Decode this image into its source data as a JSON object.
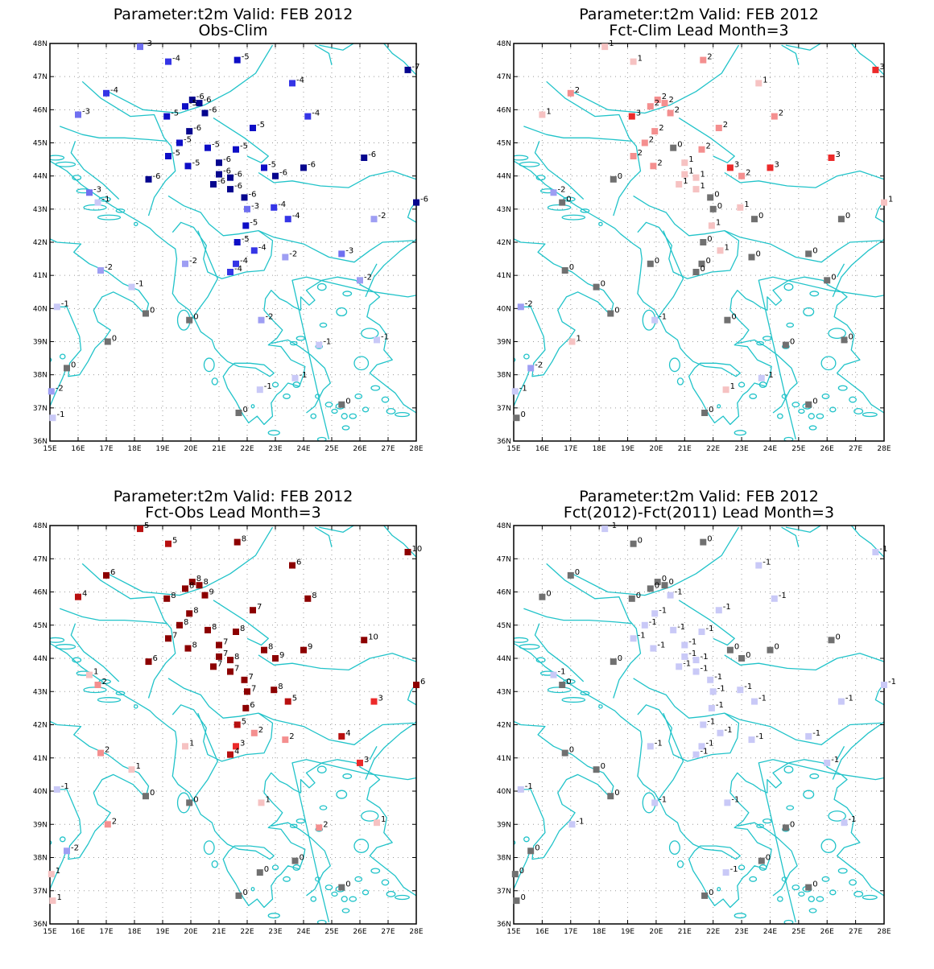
{
  "figure": {
    "axes": {
      "lon_range": [
        15,
        28
      ],
      "lat_range": [
        36,
        48
      ],
      "x_tick_labels": [
        "15E",
        "16E",
        "17E",
        "18E",
        "19E",
        "20E",
        "21E",
        "22E",
        "23E",
        "24E",
        "25E",
        "26E",
        "27E",
        "28E"
      ],
      "y_tick_labels": [
        "36N",
        "37N",
        "38N",
        "39N",
        "40N",
        "41N",
        "42N",
        "43N",
        "44N",
        "45N",
        "46N",
        "47N",
        "48N"
      ],
      "grid": "dotted"
    },
    "colors": {
      "coastline": "#21c3c9",
      "zero": "#707070",
      "neg": [
        "#c9c9f7",
        "#9e9ef3",
        "#6f6ff0",
        "#3535e6",
        "#0e0ec6",
        "#05058e"
      ],
      "pos": [
        "#f6c2c2",
        "#f48f8f",
        "#ec2a2a",
        "#b81010",
        "#8c0000"
      ]
    },
    "stations": [
      [
        18.2,
        47.9
      ],
      [
        19.2,
        47.45
      ],
      [
        21.65,
        47.5
      ],
      [
        27.7,
        47.2
      ],
      [
        17.0,
        46.5
      ],
      [
        23.6,
        46.8
      ],
      [
        16.0,
        45.85
      ],
      [
        20.05,
        46.3
      ],
      [
        19.8,
        46.1
      ],
      [
        20.3,
        46.2
      ],
      [
        19.15,
        45.8
      ],
      [
        20.5,
        45.9
      ],
      [
        24.15,
        45.8
      ],
      [
        19.95,
        45.35
      ],
      [
        22.2,
        45.45
      ],
      [
        19.6,
        45.0
      ],
      [
        20.6,
        44.85
      ],
      [
        21.6,
        44.8
      ],
      [
        19.2,
        44.6
      ],
      [
        26.15,
        44.55
      ],
      [
        21.0,
        44.4
      ],
      [
        19.9,
        44.3
      ],
      [
        22.6,
        44.25
      ],
      [
        24.0,
        44.25
      ],
      [
        21.4,
        43.95
      ],
      [
        21.0,
        44.05
      ],
      [
        23.0,
        44.0
      ],
      [
        18.5,
        43.9
      ],
      [
        20.8,
        43.75
      ],
      [
        21.4,
        43.6
      ],
      [
        16.4,
        43.5
      ],
      [
        16.7,
        43.2
      ],
      [
        21.9,
        43.35
      ],
      [
        22.95,
        43.05
      ],
      [
        22.0,
        43.0
      ],
      [
        28.0,
        43.2
      ],
      [
        23.45,
        42.7
      ],
      [
        26.5,
        42.7
      ],
      [
        21.95,
        42.5
      ],
      [
        21.65,
        42.0
      ],
      [
        22.25,
        41.75
      ],
      [
        25.35,
        41.65
      ],
      [
        23.35,
        41.55
      ],
      [
        19.8,
        41.35
      ],
      [
        21.6,
        41.35
      ],
      [
        21.4,
        41.1
      ],
      [
        16.8,
        41.15
      ],
      [
        26.0,
        40.85
      ],
      [
        17.9,
        40.65
      ],
      [
        15.25,
        40.05
      ],
      [
        18.4,
        39.85
      ],
      [
        19.95,
        39.65
      ],
      [
        22.5,
        39.65
      ],
      [
        17.05,
        39.0
      ],
      [
        24.55,
        38.9
      ],
      [
        26.6,
        39.05
      ],
      [
        15.6,
        38.2
      ],
      [
        23.7,
        37.9
      ],
      [
        15.05,
        37.5
      ],
      [
        22.45,
        37.55
      ],
      [
        21.7,
        36.85
      ],
      [
        25.35,
        37.1
      ],
      [
        15.1,
        36.7
      ]
    ],
    "panels": [
      {
        "title": "Parameter:t2m Valid: FEB 2012",
        "subtitle": "Obs-Clim",
        "values": [
          -3,
          -4,
          -5,
          -7,
          -4,
          -4,
          -3,
          -6,
          -5,
          -6,
          -5,
          -6,
          -4,
          -6,
          -5,
          -5,
          -5,
          -5,
          -5,
          -6,
          -6,
          -5,
          -5,
          -6,
          -6,
          -6,
          -6,
          -6,
          -6,
          -6,
          -3,
          -1,
          -6,
          -4,
          -3,
          -6,
          -4,
          -2,
          -5,
          -5,
          -4,
          -3,
          -2,
          -2,
          -4,
          -4,
          -2,
          -2,
          -1,
          -1,
          0,
          0,
          -2,
          0,
          -1,
          -1,
          0,
          -1,
          -2,
          -1,
          0,
          0,
          -1
        ]
      },
      {
        "title": "Parameter:t2m Valid: FEB 2012",
        "subtitle": "Fct-Clim Lead Month=3",
        "values": [
          1,
          1,
          2,
          3,
          2,
          1,
          1,
          2,
          2,
          2,
          3,
          2,
          2,
          2,
          2,
          2,
          0,
          2,
          2,
          3,
          1,
          2,
          3,
          3,
          1,
          1,
          2,
          0,
          1,
          1,
          -2,
          0,
          0,
          1,
          0,
          1,
          0,
          0,
          1,
          0,
          1,
          0,
          0,
          0,
          0,
          0,
          0,
          0,
          0,
          -2,
          0,
          -1,
          0,
          1,
          0,
          0,
          -2,
          -1,
          -1,
          1,
          0,
          0,
          0
        ]
      },
      {
        "title": "Parameter:t2m Valid: FEB 2012",
        "subtitle": "Fct-Obs Lead Month=3",
        "values": [
          5,
          5,
          8,
          10,
          6,
          6,
          4,
          8,
          8,
          8,
          8,
          9,
          8,
          8,
          7,
          8,
          8,
          8,
          7,
          10,
          7,
          8,
          8,
          9,
          8,
          7,
          9,
          6,
          7,
          7,
          1,
          2,
          7,
          8,
          7,
          6,
          5,
          3,
          6,
          5,
          2,
          4,
          2,
          1,
          3,
          4,
          2,
          3,
          1,
          -1,
          0,
          0,
          1,
          2,
          2,
          1,
          -2,
          0,
          1,
          0,
          0,
          0,
          1
        ]
      },
      {
        "title": "Parameter:t2m Valid: FEB 2012",
        "subtitle": "Fct(2012)-Fct(2011) Lead Month=3",
        "values": [
          -1,
          0,
          0,
          -1,
          0,
          -1,
          0,
          0,
          0,
          0,
          0,
          -1,
          -1,
          -1,
          -1,
          -1,
          -1,
          -1,
          -1,
          0,
          -1,
          -1,
          0,
          0,
          -1,
          -1,
          0,
          0,
          -1,
          -1,
          -1,
          0,
          -1,
          -1,
          -1,
          -1,
          -1,
          -1,
          -1,
          -1,
          -1,
          -1,
          -1,
          -1,
          -1,
          -1,
          0,
          -1,
          0,
          -1,
          0,
          -1,
          -1,
          -1,
          0,
          -1,
          0,
          0,
          0,
          -1,
          0,
          0,
          0
        ]
      }
    ]
  }
}
